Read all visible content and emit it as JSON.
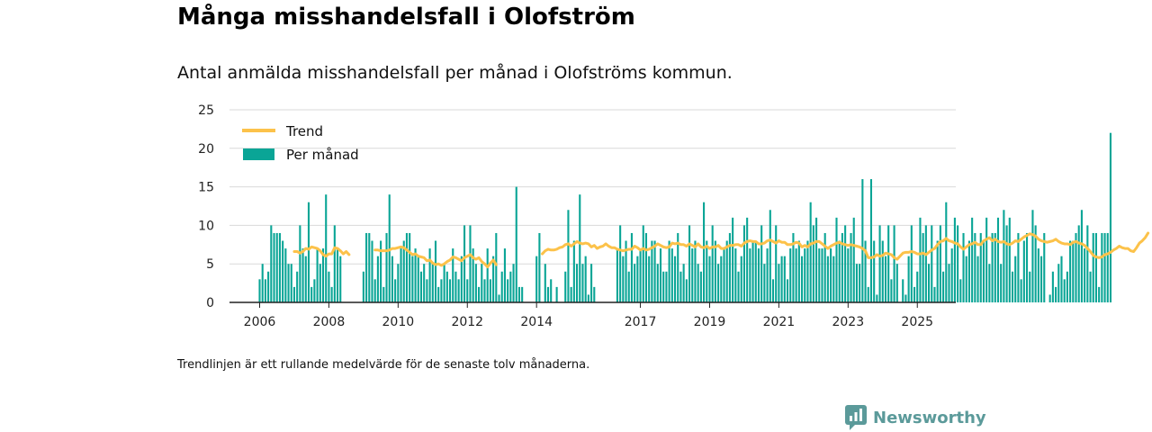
{
  "title": "Många misshandelsfall i Olofström",
  "subtitle": "Antal anmälda misshandelsfall per månad i Olofströms kommun.",
  "footnote": "Trendlinjen är ett rullande medelvärde för de senaste tolv månaderna.",
  "brand": "Newsworthy",
  "colors": {
    "bars": "#0aa596",
    "trend": "#fcc24a",
    "grid": "#d9d9d9",
    "axis": "#222222",
    "brand": "#5b9a9a"
  },
  "chart_data": {
    "type": "bar",
    "title": "Många misshandelsfall i Olofström",
    "subtitle": "Antal anmälda misshandelsfall per månad i Olofströms kommun.",
    "xlabel": "",
    "ylabel": "",
    "ylim": [
      0,
      25
    ],
    "yticks": [
      0,
      5,
      10,
      15,
      20,
      25
    ],
    "xticks": [
      "2006",
      "2008",
      "2010",
      "2012",
      "2014",
      "2017",
      "2019",
      "2021",
      "2023",
      "2025"
    ],
    "x_start": "2006-01",
    "x_end": "2025-05",
    "grid": true,
    "legend_position": "top-left",
    "legend": [
      "Trend",
      "Per månad"
    ],
    "series": [
      {
        "name": "Per månad",
        "type": "bar",
        "values": [
          3,
          5,
          3,
          4,
          10,
          9,
          9,
          9,
          8,
          7,
          5,
          5,
          2,
          4,
          10,
          7,
          6,
          13,
          2,
          3,
          7,
          5,
          7,
          14,
          4,
          2,
          10,
          7,
          6,
          0,
          0,
          0,
          0,
          0,
          0,
          0,
          4,
          9,
          9,
          8,
          3,
          6,
          8,
          2,
          9,
          14,
          6,
          3,
          5,
          7,
          8,
          9,
          9,
          6,
          7,
          6,
          4,
          5,
          3,
          7,
          5,
          8,
          2,
          3,
          5,
          4,
          3,
          7,
          4,
          3,
          6,
          10,
          3,
          10,
          7,
          5,
          2,
          5,
          3,
          7,
          3,
          6,
          9,
          1,
          4,
          7,
          3,
          4,
          5,
          15,
          2,
          2,
          0,
          0,
          0,
          0,
          6,
          9,
          0,
          5,
          2,
          3,
          0,
          2,
          0,
          0,
          4,
          12,
          2,
          8,
          5,
          14,
          5,
          6,
          1,
          5,
          2,
          0,
          0,
          0,
          0,
          0,
          0,
          0,
          7,
          10,
          6,
          8,
          4,
          9,
          5,
          6,
          7,
          10,
          9,
          6,
          8,
          8,
          5,
          7,
          4,
          4,
          8,
          7,
          6,
          9,
          4,
          5,
          3,
          10,
          7,
          8,
          5,
          4,
          13,
          8,
          6,
          10,
          8,
          5,
          6,
          7,
          8,
          9,
          11,
          7,
          4,
          6,
          10,
          11,
          7,
          8,
          8,
          7,
          10,
          5,
          7,
          12,
          3,
          10,
          5,
          6,
          6,
          3,
          7,
          9,
          7,
          8,
          6,
          7,
          8,
          13,
          10,
          11,
          7,
          7,
          9,
          6,
          7,
          6,
          11,
          8,
          9,
          10,
          7,
          9,
          11,
          5,
          5,
          16,
          8,
          2,
          16,
          8,
          1,
          10,
          8,
          6,
          10,
          3,
          10,
          5,
          0,
          3,
          1,
          6,
          10,
          2,
          4,
          11,
          9,
          10,
          5,
          10,
          2,
          8,
          10,
          4,
          13,
          5,
          7,
          11,
          10,
          3,
          9,
          6,
          8,
          11,
          9,
          6,
          9,
          8,
          11,
          5,
          9,
          9,
          11,
          5,
          12,
          10,
          11,
          4,
          6,
          9,
          3,
          8,
          9,
          4,
          12,
          10,
          7,
          6,
          9,
          0,
          1,
          4,
          2,
          5,
          6,
          3,
          4,
          8,
          8,
          9,
          10,
          12,
          7,
          10,
          4,
          9,
          9,
          2,
          9,
          9,
          9,
          22
        ]
      },
      {
        "name": "Trend",
        "type": "line",
        "segments": [
          {
            "start_index": 12,
            "values": [
              6.6,
              6.6,
              6.4,
              6.6,
              7.0,
              6.9,
              7.2,
              7.1,
              7.0,
              6.7,
              6.2,
              6.0,
              6.3,
              6.3,
              7.1,
              7.0,
              6.7,
              6.3,
              6.6,
              6.2
            ]
          },
          {
            "start_index": 40,
            "values": [
              6.8,
              6.8,
              6.7,
              6.7,
              6.7,
              6.8,
              7.0,
              7.0,
              7.1,
              7.2,
              7.1,
              6.8,
              6.5,
              6.2,
              6.3,
              6.0,
              5.9,
              5.8,
              5.4,
              5.5,
              5.1,
              4.9,
              5.0,
              4.8,
              5.0,
              5.3,
              5.5,
              5.9,
              5.8,
              5.6,
              5.4,
              5.8,
              6.0,
              6.2,
              5.8,
              5.6,
              5.8,
              5.3,
              5.0,
              4.6,
              5.1,
              5.5,
              4.9
            ]
          },
          {
            "start_index": 98,
            "values": [
              6.3,
              6.7,
              6.9,
              6.8,
              6.8,
              6.9,
              7.1,
              7.2,
              7.5,
              7.6,
              7.3,
              7.6,
              7.9,
              7.7,
              7.6,
              7.7,
              7.6,
              7.2,
              7.4,
              7.0,
              7.2,
              7.3,
              7.6,
              7.3,
              7.1,
              7.1,
              6.9,
              6.8,
              6.7,
              6.8,
              6.9,
              6.9,
              7.3,
              7.1,
              6.8,
              7.0,
              6.8,
              6.9,
              7.1,
              7.3,
              7.6,
              7.4,
              7.2,
              7.1,
              7.2,
              7.7,
              7.6,
              7.7,
              7.5,
              7.5,
              7.3,
              7.6,
              7.4,
              7.2,
              7.6,
              7.2,
              7.1,
              7.3,
              7.0,
              7.2,
              7.2,
              7.4,
              7.0,
              7.0,
              7.2,
              7.4,
              7.4,
              7.5,
              7.5,
              7.3,
              7.7,
              7.9,
              8.0,
              7.9,
              7.9,
              7.6,
              7.6,
              7.7,
              8.0,
              8.1,
              7.9,
              7.7,
              8.0,
              7.8,
              7.8,
              7.5,
              7.5,
              7.6,
              7.8,
              7.7,
              7.2,
              7.4,
              7.2,
              7.6,
              7.7,
              7.9,
              7.9,
              7.6,
              7.3,
              7.0,
              7.3,
              7.5,
              7.7,
              7.8,
              7.6,
              7.5,
              7.4,
              7.5,
              7.4,
              7.3,
              7.2,
              7.0,
              6.7,
              5.8,
              5.8,
              5.9,
              6.2,
              6.0,
              6.1,
              6.4,
              6.3,
              6.2,
              5.8,
              5.6,
              6.0,
              6.4,
              6.5,
              6.5,
              6.6,
              6.5,
              6.3,
              6.3,
              6.4,
              6.2,
              6.5,
              6.8,
              7.0,
              7.5,
              7.9,
              8.0,
              8.3,
              8.0,
              7.9,
              7.7,
              7.6,
              7.2,
              6.9,
              7.2,
              7.5,
              7.6,
              7.8,
              7.5,
              7.5,
              8.0,
              8.2,
              8.4,
              8.0,
              8.2,
              7.9,
              7.8,
              7.9,
              7.6,
              7.5,
              7.7,
              8.0,
              7.9,
              8.2,
              8.5,
              8.7,
              8.9,
              8.8,
              8.6,
              8.2,
              8.0,
              7.9,
              7.8,
              7.9,
              8.0,
              8.2,
              7.9,
              7.7,
              7.6,
              7.6,
              7.5,
              7.8,
              7.9,
              7.7,
              7.6,
              7.4,
              7.0,
              6.6,
              6.1,
              5.9,
              5.8,
              5.9,
              6.2,
              6.3,
              6.5,
              6.8,
              7.0,
              7.3,
              7.1,
              7.0,
              7.0,
              6.7,
              6.6,
              7.1,
              7.7,
              8.0,
              8.4,
              9.0
            ]
          }
        ]
      }
    ]
  }
}
